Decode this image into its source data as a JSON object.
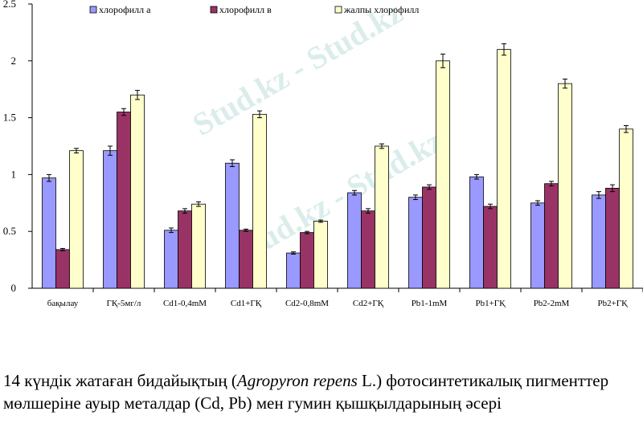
{
  "chart_data": {
    "type": "bar",
    "categories": [
      "бақылау",
      "ГҚ-5мг/л",
      "Cd1-0,4mM",
      "Cd1+ГҚ",
      "Cd2-0,8mM",
      "Cd2+ГҚ",
      "Pb1-1mM",
      "Pb1+ГҚ",
      "Pb2-2mM",
      "Pb2+ГҚ"
    ],
    "series": [
      {
        "name": "хлорофилл а",
        "color": "#9999ff",
        "values": [
          0.97,
          1.21,
          0.51,
          1.1,
          0.31,
          0.84,
          0.8,
          0.98,
          0.75,
          0.82
        ],
        "errors": [
          0.03,
          0.04,
          0.02,
          0.03,
          0.01,
          0.02,
          0.02,
          0.02,
          0.02,
          0.03
        ]
      },
      {
        "name": "хлорофилл в",
        "color": "#993366",
        "values": [
          0.34,
          1.55,
          0.68,
          0.51,
          0.49,
          0.68,
          0.89,
          0.72,
          0.92,
          0.88
        ],
        "errors": [
          0.01,
          0.03,
          0.02,
          0.01,
          0.01,
          0.02,
          0.02,
          0.02,
          0.02,
          0.03
        ]
      },
      {
        "name": "жалпы хлорофилл",
        "color": "#ffffcc",
        "values": [
          1.21,
          1.7,
          0.74,
          1.53,
          0.59,
          1.25,
          2.0,
          2.1,
          1.8,
          1.4
        ],
        "errors": [
          0.02,
          0.04,
          0.02,
          0.03,
          0.01,
          0.02,
          0.06,
          0.05,
          0.04,
          0.03
        ]
      }
    ],
    "ylim": [
      0,
      2.5
    ],
    "yticks": [
      "0",
      "0.5",
      "1",
      "1.5",
      "2",
      "2.5"
    ],
    "legend_position": "top",
    "grid": false
  },
  "caption": {
    "part1": "14 күндік жатаған бидайықтың (",
    "species": "Agropyron repens",
    "part2": " L.) фотосинтетикалық пигменттер мөлшеріне ауыр металдар (Cd, Pb) мен гумин қышқылдарының әсері"
  },
  "watermark": "Stud.kz - Stud.kz"
}
